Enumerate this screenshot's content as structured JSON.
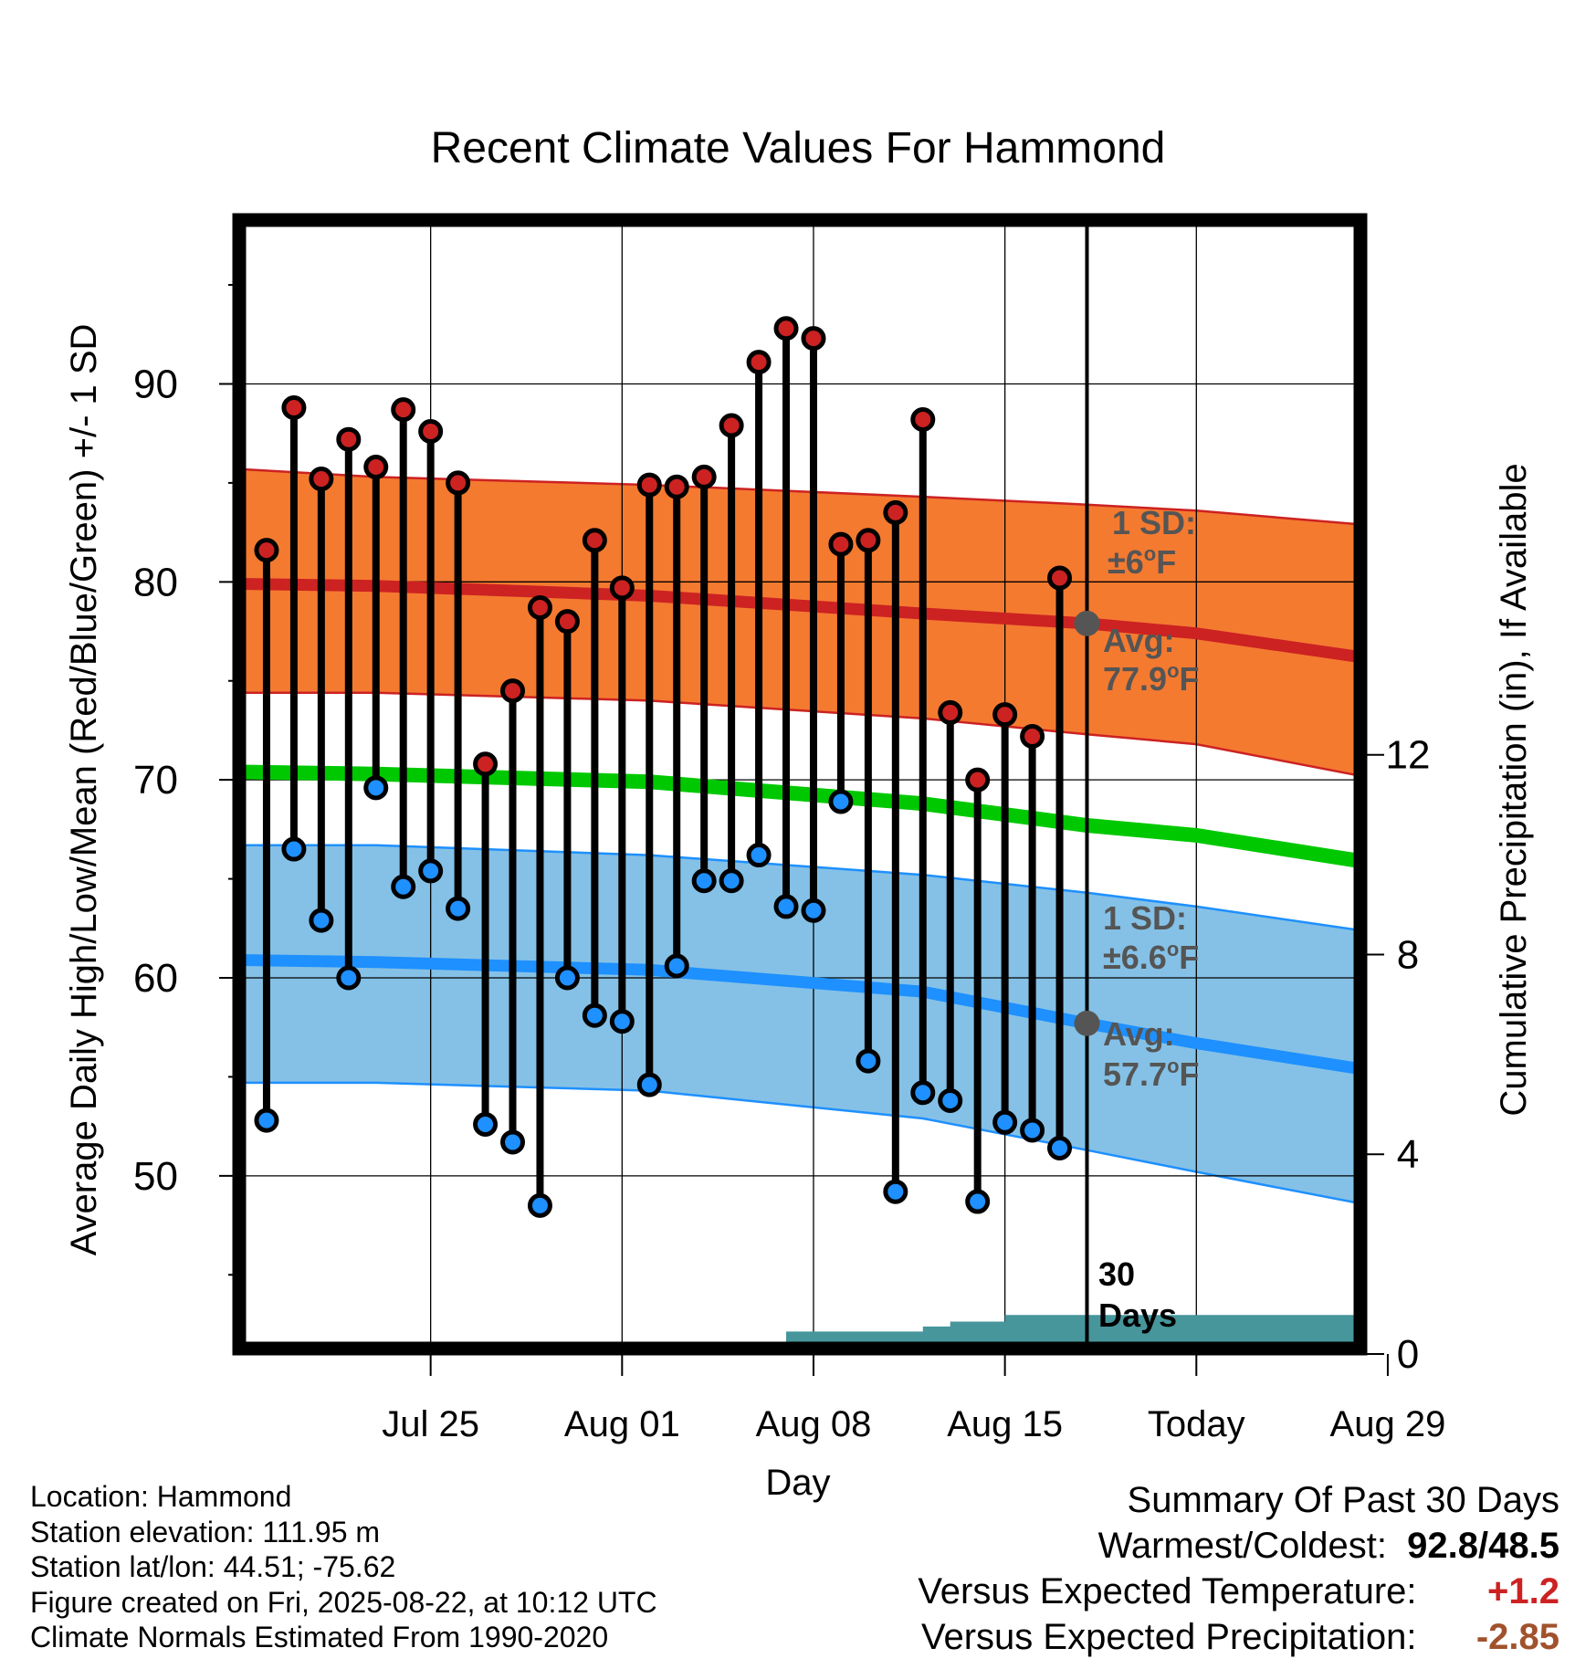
{
  "chart_data": {
    "type": "line",
    "title": "Recent Climate Values For Hammond",
    "xlabel": "Day",
    "ylabel_left": "Average Daily High/Low/Mean (Red/Blue/Green) +/- 1 SD",
    "ylabel_right": "Cumulative Precipitation (in), If Available",
    "x_tick_labels": [
      "Jul 25",
      "Aug 01",
      "Aug 08",
      "Aug 15",
      "Today",
      "Aug 29"
    ],
    "y_left_ticks": [
      "50",
      "60",
      "70",
      "80",
      "90"
    ],
    "y_right_ticks": [
      "0",
      "4",
      "8",
      "12"
    ],
    "ylim_left": [
      41,
      98
    ],
    "ylim_right": [
      0,
      22.6
    ],
    "days_range": [
      -31,
      10
    ],
    "today_marker_label": "30 Days",
    "observed": {
      "day": [
        -30,
        -29,
        -28,
        -27,
        -26,
        -25,
        -24,
        -23,
        -22,
        -21,
        -20,
        -19,
        -18,
        -17,
        -16,
        -15,
        -14,
        -13,
        -12,
        -11,
        -10,
        -9,
        -8,
        -7,
        -6,
        -5,
        -4,
        -3,
        -2,
        -1
      ],
      "high": [
        81.6,
        88.8,
        85.2,
        87.2,
        85.8,
        88.7,
        87.6,
        85.0,
        70.8,
        74.5,
        78.7,
        78.0,
        82.1,
        79.7,
        84.9,
        84.8,
        85.3,
        87.9,
        91.1,
        92.8,
        92.3,
        81.9,
        82.1,
        83.5,
        88.2,
        73.4,
        70.0,
        73.3,
        72.2,
        80.2
      ],
      "low": [
        52.8,
        66.5,
        62.9,
        60.0,
        69.6,
        64.6,
        65.4,
        63.5,
        52.6,
        51.7,
        48.5,
        60.0,
        58.1,
        57.8,
        54.6,
        60.6,
        64.9,
        64.9,
        66.2,
        63.6,
        63.4,
        68.9,
        55.8,
        49.2,
        54.2,
        53.8,
        48.7,
        52.7,
        52.3,
        51.4
      ]
    },
    "normals": {
      "day": [
        -31,
        -26,
        -16,
        -6,
        0,
        4,
        10
      ],
      "high_avg": [
        79.9,
        79.8,
        79.3,
        78.4,
        77.9,
        77.4,
        76.2
      ],
      "high_upper": [
        85.7,
        85.3,
        84.9,
        84.3,
        83.9,
        83.6,
        82.9
      ],
      "high_lower": [
        74.4,
        74.4,
        74.0,
        73.1,
        72.3,
        71.8,
        70.2
      ],
      "mean_avg": [
        70.4,
        70.3,
        69.9,
        68.8,
        67.7,
        67.2,
        65.9
      ],
      "low_avg": [
        60.9,
        60.8,
        60.4,
        59.3,
        57.7,
        56.7,
        55.4
      ],
      "low_upper": [
        66.7,
        66.7,
        66.2,
        65.2,
        64.3,
        63.6,
        62.4
      ],
      "low_lower": [
        54.7,
        54.7,
        54.3,
        52.9,
        51.3,
        50.2,
        48.6
      ]
    },
    "precip_cumulative": {
      "day": [
        -12,
        -11,
        -8,
        -7,
        -6,
        -5,
        -3,
        -2,
        -1,
        0,
        10
      ],
      "value": [
        0.0,
        0.45,
        0.45,
        0.45,
        0.55,
        0.65,
        0.78,
        0.78,
        0.78,
        0.78,
        0.78
      ]
    },
    "annotations": {
      "high_sd_title": "1 SD:",
      "high_sd_value": "±6",
      "high_avg_title": "Avg:",
      "high_avg_value": "77.9",
      "low_sd_title": "1 SD:",
      "low_sd_value": "±6.6",
      "low_avg_title": "Avg:",
      "low_avg_value": "57.7",
      "unit_degree": "o",
      "unit_f": "F"
    },
    "colors": {
      "high_band": "#f47a30",
      "high_line": "#cc2222",
      "mean_line": "#00c800",
      "low_band": "#85c1e6",
      "low_line": "#1e90ff",
      "precip_fill": "#46969c",
      "high_dot": "#cc2222",
      "low_dot": "#1e90ff",
      "annotation_text": "#555555"
    }
  },
  "info": {
    "location": "Location: Hammond",
    "elevation": "Station elevation: 111.95 m",
    "latlon": "Station lat/lon: 44.51; -75.62",
    "created": "Figure created on Fri, 2025-08-22, at 10:12 UTC",
    "normals": "Climate Normals Estimated From 1990-2020"
  },
  "summary": {
    "title": "Summary Of Past 30 Days",
    "warmest_label": "Warmest/Coldest:",
    "warmest_value": "92.8/48.5",
    "temp_label": "Versus Expected Temperature:",
    "temp_value": "+1.2",
    "temp_color": "#cc2222",
    "precip_label": "Versus Expected Precipitation:",
    "precip_value": "-2.85",
    "precip_color": "#a0522d"
  }
}
